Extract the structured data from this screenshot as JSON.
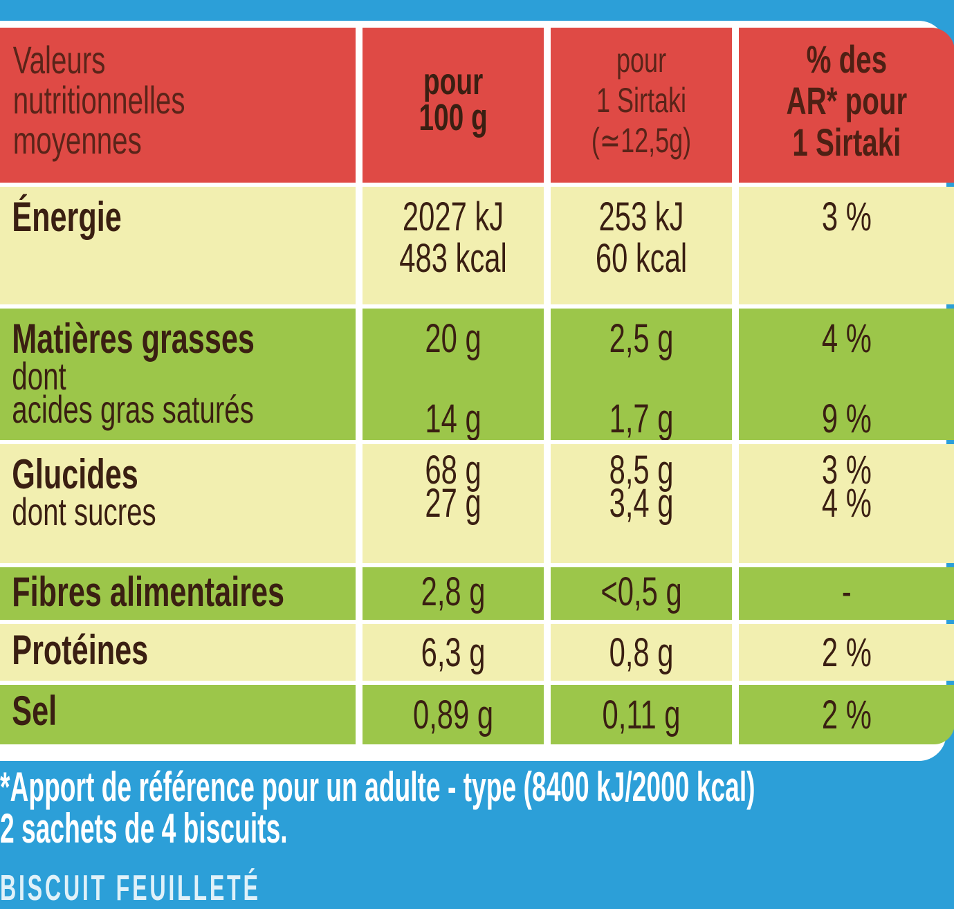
{
  "header": {
    "label": [
      "Valeurs",
      "nutritionnelles",
      "moyennes"
    ],
    "col_100g": [
      "pour",
      "100 g"
    ],
    "col_portion": [
      "pour",
      "1 Sirtaki",
      "(≃12,5g)"
    ],
    "col_ar": [
      "% des",
      "AR* pour",
      "1 Sirtaki"
    ]
  },
  "rows": [
    {
      "label": "Énergie",
      "sub": "",
      "v100": [
        "2027 kJ",
        "483 kcal"
      ],
      "vportion": [
        "253 kJ",
        "60 kcal"
      ],
      "pct": [
        "3 %"
      ]
    },
    {
      "label": "Matières grasses",
      "sub": "dont",
      "sub2": "acides gras saturés",
      "v100": [
        "20 g",
        "14 g"
      ],
      "vportion": [
        "2,5 g",
        "1,7 g"
      ],
      "pct": [
        "4 %",
        "9 %"
      ]
    },
    {
      "label": "Glucides",
      "sub": "dont sucres",
      "v100": [
        "68 g",
        "27 g"
      ],
      "vportion": [
        "8,5 g",
        "3,4 g"
      ],
      "pct": [
        "3 %",
        "4 %"
      ]
    },
    {
      "label": "Fibres alimentaires",
      "v100": [
        "2,8 g"
      ],
      "vportion": [
        "<0,5 g"
      ],
      "pct": [
        "-"
      ]
    },
    {
      "label": "Protéines",
      "v100": [
        "6,3 g"
      ],
      "vportion": [
        "0,8 g"
      ],
      "pct": [
        "2 %"
      ]
    },
    {
      "label": "Sel",
      "v100": [
        "0,89 g"
      ],
      "vportion": [
        "0,11 g"
      ],
      "pct": [
        "2 %"
      ]
    }
  ],
  "footer": {
    "line1": "*Apport de référence pour un adulte - type (8400 kJ/2000 kcal)",
    "line2": "2 sachets de 4 biscuits.",
    "line3": "BISCUIT FEUILLETÉ"
  },
  "colors": {
    "header": "#df4a45",
    "yellow": "#f2efb0",
    "green": "#9cc64a",
    "background": "#2c9fd8"
  }
}
